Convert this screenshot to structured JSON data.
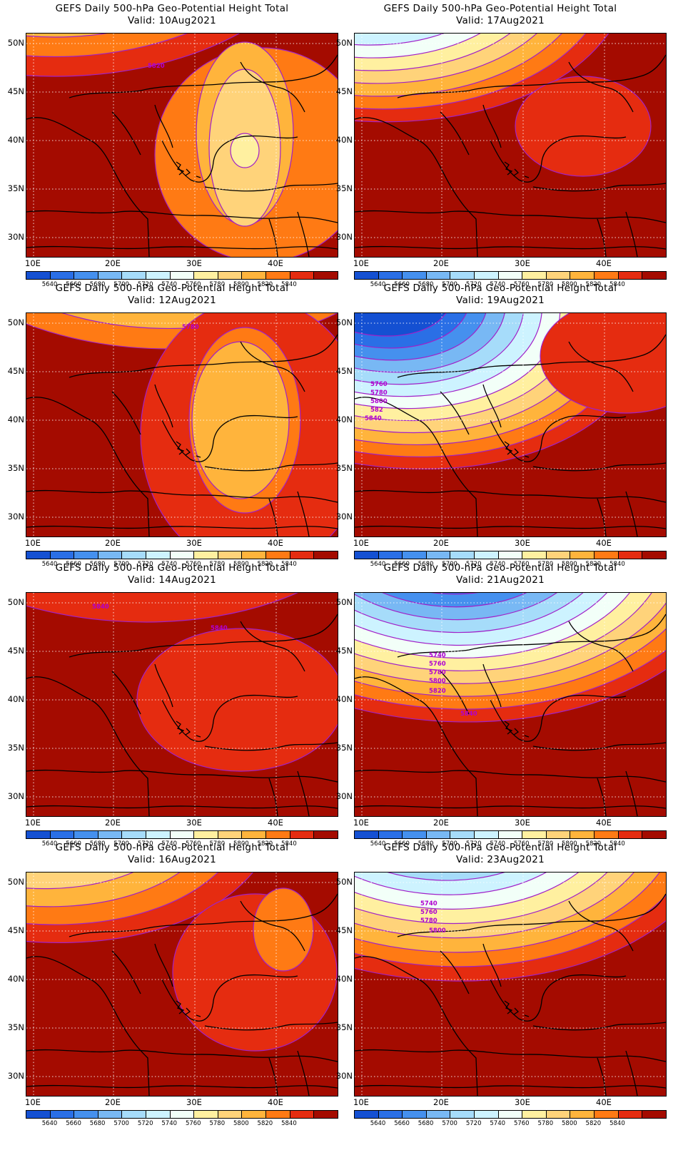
{
  "colorbar": {
    "colors": [
      "#1450d2",
      "#2a6fe6",
      "#4590ee",
      "#78b8f4",
      "#a6dcfa",
      "#cdf3ff",
      "#f2fff8",
      "#fff0a0",
      "#ffd37a",
      "#ffb43c",
      "#ff7a14",
      "#e52c10",
      "#a40b00"
    ],
    "labels": [
      "5640",
      "5660",
      "5680",
      "5700",
      "5720",
      "5740",
      "5760",
      "5780",
      "5800",
      "5820",
      "5840"
    ]
  },
  "axes": {
    "lat_labels": [
      "50N",
      "45N",
      "40N",
      "35N",
      "30N"
    ],
    "lon_labels": [
      "10E",
      "20E",
      "30E",
      "40E"
    ]
  },
  "panels": [
    {
      "id": "p0",
      "title": "GEFS Daily 500-hPa Geo-Potential Height Total",
      "valid": "Valid: 10Aug2021",
      "contour_labels": [
        {
          "text": "5820"
        }
      ]
    },
    {
      "id": "p1",
      "title": "GEFS Daily 500-hPa Geo-Potential Height Total",
      "valid": "Valid: 17Aug2021",
      "contour_labels": []
    },
    {
      "id": "p2",
      "title": "GEFS Daily 500-hPa Geo-Potential Height Total",
      "valid": "Valid: 12Aug2021",
      "contour_labels": [
        {
          "text": "5780"
        }
      ]
    },
    {
      "id": "p3",
      "title": "GEFS Daily 500-hPa Geo-Potential Height Total",
      "valid": "Valid: 19Aug2021",
      "contour_labels": [
        {
          "text": "5760"
        },
        {
          "text": "5780"
        },
        {
          "text": "5800"
        },
        {
          "text": "582"
        },
        {
          "text": "5840"
        }
      ]
    },
    {
      "id": "p4",
      "title": "GEFS Daily 500-hPa Geo-Potential Height Total",
      "valid": "Valid: 14Aug2021",
      "contour_labels": [
        {
          "text": "5840"
        },
        {
          "text": "5840"
        }
      ]
    },
    {
      "id": "p5",
      "title": "GEFS Daily 500-hPa Geo-Potential Height Total",
      "valid": "Valid: 21Aug2021",
      "contour_labels": [
        {
          "text": "5740"
        },
        {
          "text": "5760"
        },
        {
          "text": "5780"
        },
        {
          "text": "5800"
        },
        {
          "text": "5820"
        },
        {
          "text": "5840"
        }
      ]
    },
    {
      "id": "p6",
      "title": "GEFS Daily 500-hPa Geo-Potential Height Total",
      "valid": "Valid: 16Aug2021",
      "contour_labels": []
    },
    {
      "id": "p7",
      "title": "GEFS Daily 500-hPa Geo-Potential Height Total",
      "valid": "Valid: 23Aug2021",
      "contour_labels": [
        {
          "text": "5740"
        },
        {
          "text": "5760"
        },
        {
          "text": "5780"
        },
        {
          "text": "5800"
        }
      ]
    }
  ]
}
